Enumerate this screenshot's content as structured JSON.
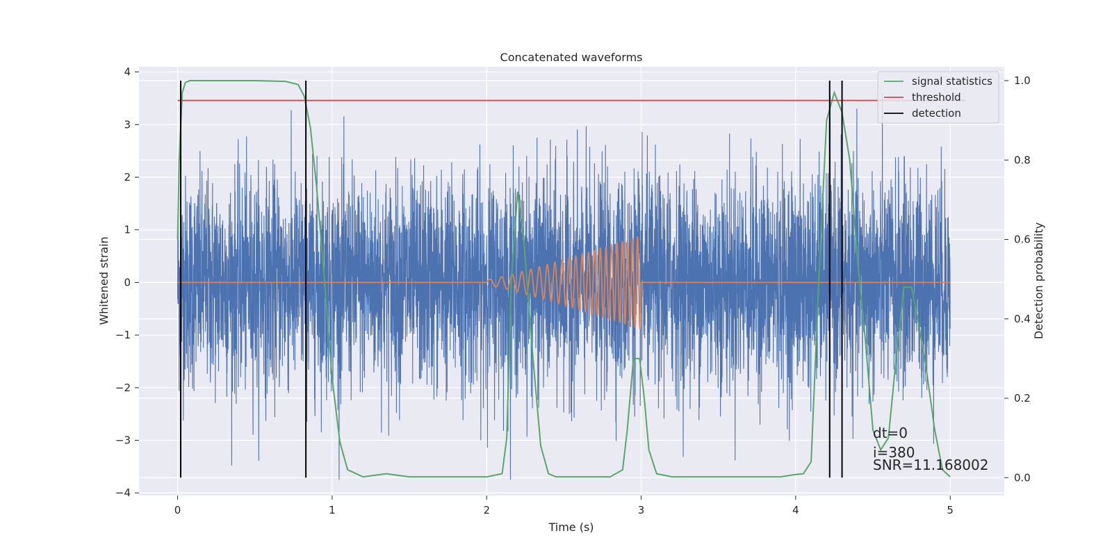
{
  "chart_data": {
    "type": "line",
    "title": "Concatenated waveforms",
    "xlabel": "Time (s)",
    "ylabel_left": "Whitened strain",
    "ylabel_right": "Detection probability",
    "xlim": [
      -0.25,
      5.35
    ],
    "ylim_left": [
      -4.05,
      4.1
    ],
    "ylim_right": [
      -0.045,
      1.035
    ],
    "x_ticks": [
      0,
      1,
      2,
      3,
      4,
      5
    ],
    "y_left_ticks": [
      4,
      3,
      2,
      1,
      0,
      -1,
      -2,
      -3,
      -4
    ],
    "y_right_ticks": [
      1.0,
      0.8,
      0.6,
      0.4,
      0.2,
      0.0
    ],
    "y_left_tick_labels": [
      "4",
      "3",
      "2",
      "1",
      "0",
      "−1",
      "−2",
      "−3",
      "−4"
    ],
    "y_right_tick_labels": [
      "1.0",
      "0.8",
      "0.6",
      "0.4",
      "0.2",
      "0.0"
    ],
    "x_tick_labels": [
      "0",
      "1",
      "2",
      "3",
      "4",
      "5"
    ],
    "grid": true,
    "legend_placement": "top-right",
    "legend": [
      {
        "label": "signal statistics",
        "color": "#55a868"
      },
      {
        "label": "threshold",
        "color": "#c44e52"
      },
      {
        "label": "detection",
        "color": "#000000"
      }
    ],
    "series": [
      {
        "name": "strain",
        "axis": "left",
        "color": "#4c72b0",
        "description_type": "noise",
        "x_range": [
          0,
          5
        ],
        "amplitude_typical": 1.0,
        "amplitude_max": 3.75
      },
      {
        "name": "injected signal",
        "axis": "left",
        "color": "#dd8452",
        "x_range": [
          0,
          5
        ],
        "chirp_start": 2.0,
        "chirp_end": 3.0,
        "chirp_peak_amplitude": 0.85
      },
      {
        "name": "signal statistics",
        "axis": "right",
        "color": "#55a868",
        "x": [
          0,
          0.01,
          0.03,
          0.05,
          0.08,
          0.15,
          0.3,
          0.5,
          0.7,
          0.78,
          0.82,
          0.86,
          0.9,
          0.95,
          1.0,
          1.05,
          1.1,
          1.2,
          1.35,
          1.5,
          1.8,
          2.0,
          2.1,
          2.13,
          2.16,
          2.2,
          2.24,
          2.3,
          2.35,
          2.4,
          2.45,
          2.55,
          2.8,
          2.88,
          2.91,
          2.95,
          2.99,
          3.02,
          3.05,
          3.1,
          3.2,
          3.5,
          3.9,
          4.0,
          4.05,
          4.1,
          4.15,
          4.2,
          4.25,
          4.3,
          4.35,
          4.4,
          4.45,
          4.5,
          4.55,
          4.6,
          4.65,
          4.7,
          4.75,
          4.8,
          4.85,
          4.9,
          4.95,
          5.0
        ],
        "y": [
          0.6,
          0.8,
          0.97,
          0.995,
          1.0,
          1.0,
          1.0,
          1.0,
          0.998,
          0.99,
          0.96,
          0.88,
          0.73,
          0.5,
          0.25,
          0.09,
          0.02,
          0.002,
          0.01,
          0.002,
          0.002,
          0.002,
          0.01,
          0.1,
          0.5,
          0.72,
          0.6,
          0.3,
          0.08,
          0.01,
          0.002,
          0.002,
          0.002,
          0.02,
          0.12,
          0.3,
          0.3,
          0.2,
          0.07,
          0.01,
          0.002,
          0.002,
          0.002,
          0.008,
          0.01,
          0.04,
          0.5,
          0.9,
          0.97,
          0.92,
          0.8,
          0.55,
          0.35,
          0.12,
          0.07,
          0.1,
          0.3,
          0.48,
          0.48,
          0.38,
          0.26,
          0.12,
          0.02,
          0.002
        ]
      },
      {
        "name": "threshold",
        "axis": "right",
        "color": "#c44e52",
        "x": [
          0,
          5.1
        ],
        "y": [
          0.95,
          0.95
        ]
      },
      {
        "name": "detection",
        "axis": "right",
        "color": "#000000",
        "type": "vlines",
        "x": [
          0.02,
          0.83,
          4.22,
          4.3
        ],
        "ymin": 0.0,
        "ymax": 1.0
      }
    ],
    "annotations": [
      "dt=0",
      "i=380",
      "SNR=11.168002"
    ]
  }
}
